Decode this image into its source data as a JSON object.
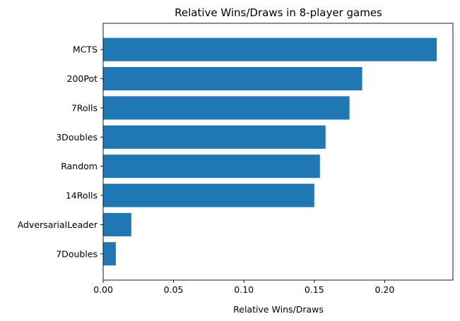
{
  "chart_data": {
    "type": "bar",
    "orientation": "horizontal",
    "title": "Relative Wins/Draws in 8-player games",
    "xlabel": "Relative Wins/Draws",
    "ylabel": "",
    "categories": [
      "MCTS",
      "200Pot",
      "7Rolls",
      "3Doubles",
      "Random",
      "14Rolls",
      "AdversarialLeader",
      "7Doubles"
    ],
    "values": [
      0.237,
      0.184,
      0.175,
      0.158,
      0.154,
      0.15,
      0.02,
      0.009
    ],
    "xlim": [
      0,
      0.2485
    ],
    "xticks": [
      0.0,
      0.05,
      0.1,
      0.15,
      0.2
    ],
    "xtick_labels": [
      "0.00",
      "0.05",
      "0.10",
      "0.15",
      "0.20"
    ],
    "grid": false,
    "legend": "none",
    "bar_color": "#1f77b4"
  }
}
